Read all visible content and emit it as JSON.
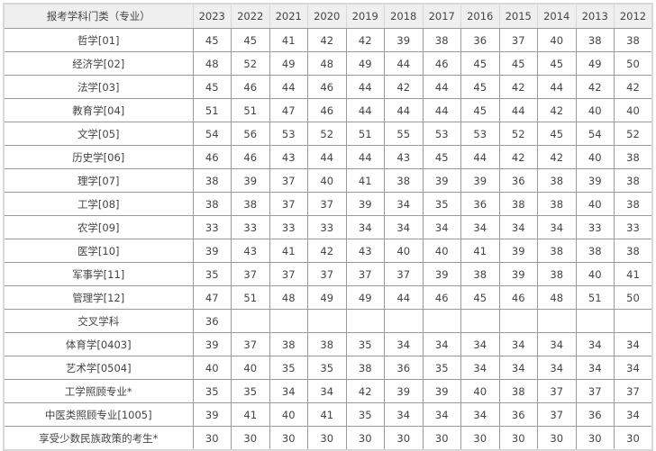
{
  "table": {
    "header_label": "报考学科门类（专业）",
    "years": [
      "2023",
      "2022",
      "2021",
      "2020",
      "2019",
      "2018",
      "2017",
      "2016",
      "2015",
      "2014",
      "2013",
      "2012"
    ],
    "rows": [
      {
        "label": "哲学[01]",
        "values": [
          "45",
          "45",
          "41",
          "42",
          "42",
          "39",
          "38",
          "36",
          "37",
          "40",
          "38",
          "38"
        ]
      },
      {
        "label": "经济学[02]",
        "values": [
          "48",
          "52",
          "49",
          "48",
          "49",
          "44",
          "46",
          "45",
          "45",
          "45",
          "49",
          "50"
        ]
      },
      {
        "label": "法学[03]",
        "values": [
          "45",
          "46",
          "44",
          "46",
          "44",
          "42",
          "44",
          "45",
          "42",
          "44",
          "42",
          "42"
        ]
      },
      {
        "label": "教育学[04]",
        "values": [
          "51",
          "51",
          "47",
          "46",
          "44",
          "44",
          "44",
          "45",
          "44",
          "42",
          "40",
          "40"
        ]
      },
      {
        "label": "文学[05]",
        "values": [
          "54",
          "56",
          "53",
          "52",
          "51",
          "55",
          "53",
          "53",
          "52",
          "45",
          "54",
          "52"
        ]
      },
      {
        "label": "历史学[06]",
        "values": [
          "46",
          "46",
          "43",
          "44",
          "44",
          "43",
          "45",
          "44",
          "42",
          "42",
          "40",
          "38"
        ]
      },
      {
        "label": "理学[07]",
        "values": [
          "38",
          "39",
          "37",
          "40",
          "41",
          "38",
          "39",
          "39",
          "36",
          "38",
          "39",
          "38"
        ]
      },
      {
        "label": "工学[08]",
        "values": [
          "38",
          "38",
          "37",
          "37",
          "39",
          "34",
          "35",
          "36",
          "38",
          "38",
          "40",
          "38"
        ]
      },
      {
        "label": "农学[09]",
        "values": [
          "33",
          "33",
          "33",
          "33",
          "34",
          "34",
          "34",
          "34",
          "34",
          "34",
          "33",
          "33"
        ]
      },
      {
        "label": "医学[10]",
        "values": [
          "39",
          "43",
          "41",
          "42",
          "43",
          "40",
          "40",
          "41",
          "39",
          "38",
          "38",
          "38"
        ]
      },
      {
        "label": "军事学[11]",
        "values": [
          "35",
          "37",
          "37",
          "37",
          "37",
          "37",
          "39",
          "38",
          "39",
          "38",
          "40",
          "41"
        ]
      },
      {
        "label": "管理学[12]",
        "values": [
          "47",
          "51",
          "48",
          "49",
          "49",
          "44",
          "46",
          "45",
          "46",
          "48",
          "51",
          "50"
        ]
      },
      {
        "label": "交叉学科",
        "values": [
          "36",
          "",
          "",
          "",
          "",
          "",
          "",
          "",
          "",
          "",
          "",
          ""
        ]
      },
      {
        "label": "体育学[0403]",
        "values": [
          "39",
          "37",
          "38",
          "38",
          "35",
          "34",
          "34",
          "34",
          "34",
          "34",
          "34",
          "34"
        ]
      },
      {
        "label": "艺术学[0504]",
        "values": [
          "40",
          "40",
          "35",
          "35",
          "38",
          "36",
          "35",
          "34",
          "34",
          "34",
          "34",
          "34"
        ]
      },
      {
        "label": "工学照顾专业*",
        "values": [
          "35",
          "35",
          "34",
          "34",
          "42",
          "39",
          "39",
          "40",
          "38",
          "37",
          "37",
          "37"
        ]
      },
      {
        "label": "中医类照顾专业[1005]",
        "values": [
          "39",
          "41",
          "40",
          "41",
          "35",
          "34",
          "34",
          "34",
          "36",
          "37",
          "36",
          "34"
        ]
      },
      {
        "label": "享受少数民族政策的考生*",
        "values": [
          "30",
          "30",
          "30",
          "30",
          "30",
          "30",
          "30",
          "30",
          "30",
          "30",
          "30",
          "30"
        ]
      }
    ]
  }
}
